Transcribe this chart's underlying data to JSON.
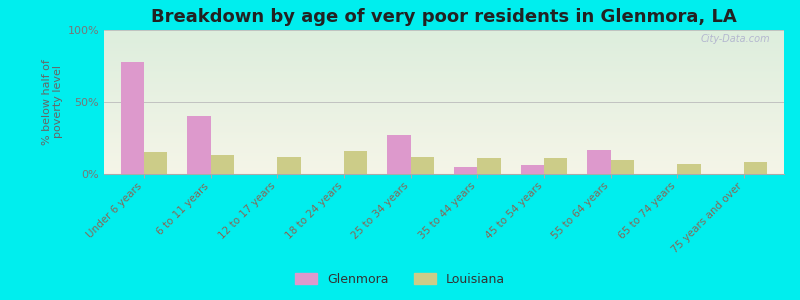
{
  "title": "Breakdown by age of very poor residents in Glenmora, LA",
  "ylabel": "% below half of\npoverty level",
  "categories": [
    "Under 6 years",
    "6 to 11 years",
    "12 to 17 years",
    "18 to 24 years",
    "25 to 34 years",
    "35 to 44 years",
    "45 to 54 years",
    "55 to 64 years",
    "65 to 74 years",
    "75 years and over"
  ],
  "glenmora": [
    78,
    40,
    0,
    0,
    27,
    5,
    6,
    17,
    0,
    0
  ],
  "louisiana": [
    15,
    13,
    12,
    16,
    12,
    11,
    11,
    10,
    7,
    8
  ],
  "glenmora_color": "#dd99cc",
  "louisiana_color": "#cccc88",
  "background_color": "#00eeee",
  "plot_bg_top": "#ddeedd",
  "plot_bg_bottom": "#f5f5e8",
  "ylim": [
    0,
    100
  ],
  "yticks": [
    0,
    50,
    100
  ],
  "ytick_labels": [
    "0%",
    "50%",
    "100%"
  ],
  "bar_width": 0.35,
  "title_fontsize": 13,
  "axis_label_fontsize": 8,
  "tick_label_color": "#886655",
  "ytick_color": "#777777",
  "ylabel_color": "#666666",
  "legend_labels": [
    "Glenmora",
    "Louisiana"
  ],
  "watermark": "City-Data.com"
}
